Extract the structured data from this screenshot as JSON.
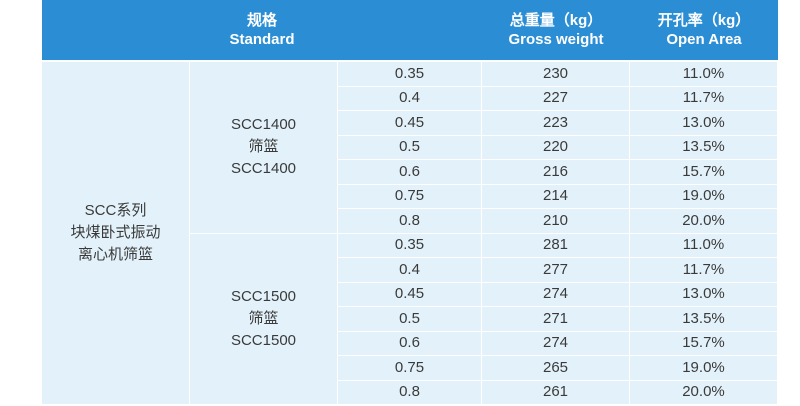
{
  "header": {
    "standard_cn": "规格",
    "standard_en": "Standard",
    "weight_cn": "总重量（kg）",
    "weight_en": "Gross weight",
    "open_cn": "开孔率（kg）",
    "open_en": "Open Area"
  },
  "table": {
    "series_label": [
      "SCC系列",
      "块煤卧式振动",
      "离心机筛篮"
    ],
    "groups": [
      {
        "model": [
          "SCC1400",
          "筛篮",
          "SCC1400"
        ],
        "rows": [
          [
            "0.35",
            "230",
            "11.0%"
          ],
          [
            "0.4",
            "227",
            "11.7%"
          ],
          [
            "0.45",
            "223",
            "13.0%"
          ],
          [
            "0.5",
            "220",
            "13.5%"
          ],
          [
            "0.6",
            "216",
            "15.7%"
          ],
          [
            "0.75",
            "214",
            "19.0%"
          ],
          [
            "0.8",
            "210",
            "20.0%"
          ]
        ]
      },
      {
        "model": [
          "SCC1500",
          "筛篮",
          "SCC1500"
        ],
        "rows": [
          [
            "0.35",
            "281",
            "11.0%"
          ],
          [
            "0.4",
            "277",
            "11.7%"
          ],
          [
            "0.45",
            "274",
            "13.0%"
          ],
          [
            "0.5",
            "271",
            "13.5%"
          ],
          [
            "0.6",
            "274",
            "15.7%"
          ],
          [
            "0.75",
            "265",
            "19.0%"
          ],
          [
            "0.8",
            "261",
            "20.0%"
          ]
        ]
      }
    ]
  }
}
